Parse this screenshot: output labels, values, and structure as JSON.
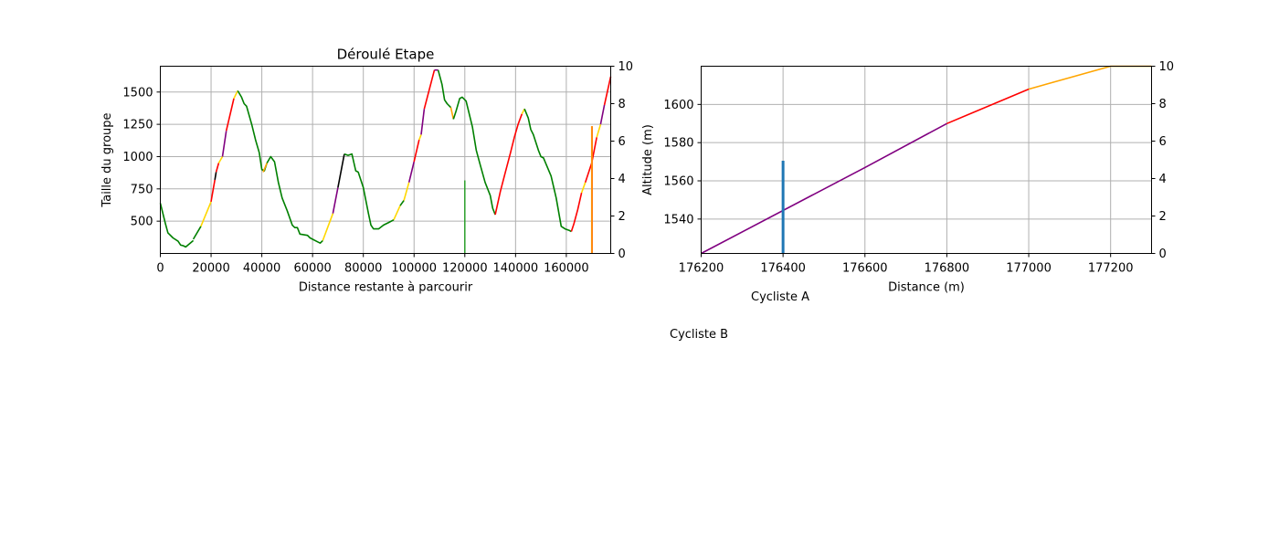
{
  "chart_data": [
    {
      "type": "line",
      "title": "Déroulé Etape",
      "xlabel": "Distance restante à parcourir",
      "ylabel": "Taille du groupe",
      "xlim": [
        0,
        177500
      ],
      "ylim": [
        250,
        1700
      ],
      "y2lim": [
        0,
        10
      ],
      "grid": true,
      "x_ticks": [
        0,
        20000,
        40000,
        60000,
        80000,
        100000,
        120000,
        140000,
        160000
      ],
      "y_ticks": [
        500,
        750,
        1000,
        1250,
        1500
      ],
      "y2_ticks": [
        0,
        2,
        4,
        6,
        8,
        10
      ],
      "colors": {
        "green": "#008000",
        "yellow": "#ffd700",
        "orange": "#ffa500",
        "red": "#ff0000",
        "purple": "#800080",
        "black": "#000000"
      },
      "series": [
        {
          "color": "#008000",
          "points": [
            [
              0,
              640
            ],
            [
              2000,
              480
            ],
            [
              3000,
              410
            ],
            [
              5000,
              370
            ],
            [
              7000,
              345
            ],
            [
              8000,
              315
            ],
            [
              9000,
              310
            ],
            [
              10000,
              300
            ],
            [
              13000,
              350
            ]
          ]
        },
        {
          "color": "#008000",
          "points": [
            [
              13000,
              360
            ],
            [
              16000,
              460
            ]
          ]
        },
        {
          "color": "#ffd700",
          "points": [
            [
              16000,
              460
            ],
            [
              20000,
              650
            ]
          ]
        },
        {
          "color": "#ff0000",
          "points": [
            [
              20000,
              650
            ],
            [
              21500,
              820
            ]
          ]
        },
        {
          "color": "#000000",
          "points": [
            [
              21500,
              820
            ],
            [
              22000,
              880
            ]
          ]
        },
        {
          "color": "#ff0000",
          "points": [
            [
              22000,
              880
            ],
            [
              23000,
              950
            ]
          ]
        },
        {
          "color": "#ffd700",
          "points": [
            [
              23000,
              950
            ],
            [
              24500,
              1000
            ]
          ]
        },
        {
          "color": "#800080",
          "points": [
            [
              24500,
              1000
            ],
            [
              26000,
              1200
            ]
          ]
        },
        {
          "color": "#ff0000",
          "points": [
            [
              26000,
              1200
            ],
            [
              29000,
              1450
            ]
          ]
        },
        {
          "color": "#ffd700",
          "points": [
            [
              29000,
              1450
            ],
            [
              30500,
              1510
            ]
          ]
        },
        {
          "color": "#008000",
          "points": [
            [
              30500,
              1510
            ],
            [
              32000,
              1460
            ],
            [
              33000,
              1410
            ],
            [
              34000,
              1390
            ],
            [
              36000,
              1250
            ],
            [
              37500,
              1130
            ],
            [
              39000,
              1030
            ],
            [
              40000,
              900
            ],
            [
              41000,
              890
            ],
            [
              42000,
              950
            ]
          ]
        },
        {
          "color": "#ffa500",
          "points": [
            [
              40500,
              880
            ],
            [
              42000,
              950
            ]
          ]
        },
        {
          "color": "#008000",
          "points": [
            [
              42000,
              950
            ],
            [
              43500,
              1000
            ],
            [
              45000,
              960
            ],
            [
              46500,
              800
            ],
            [
              48000,
              680
            ],
            [
              50000,
              580
            ],
            [
              52000,
              470
            ],
            [
              53000,
              450
            ],
            [
              54000,
              450
            ],
            [
              55000,
              400
            ],
            [
              58000,
              390
            ],
            [
              59000,
              370
            ],
            [
              62000,
              340
            ],
            [
              63000,
              330
            ],
            [
              64000,
              350
            ]
          ]
        },
        {
          "color": "#ffd700",
          "points": [
            [
              64000,
              350
            ],
            [
              68000,
              560
            ]
          ]
        },
        {
          "color": "#800080",
          "points": [
            [
              68000,
              560
            ],
            [
              70000,
              760
            ]
          ]
        },
        {
          "color": "#000000",
          "points": [
            [
              70000,
              760
            ],
            [
              72500,
              1020
            ]
          ]
        },
        {
          "color": "#008000",
          "points": [
            [
              72500,
              1020
            ],
            [
              74000,
              1010
            ],
            [
              75500,
              1020
            ],
            [
              77000,
              890
            ],
            [
              78000,
              880
            ],
            [
              80000,
              760
            ],
            [
              82000,
              560
            ],
            [
              83000,
              470
            ],
            [
              84000,
              440
            ],
            [
              86000,
              440
            ],
            [
              88000,
              470
            ],
            [
              90000,
              490
            ],
            [
              92000,
              510
            ]
          ]
        },
        {
          "color": "#ffd700",
          "points": [
            [
              92000,
              510
            ],
            [
              94500,
              620
            ]
          ]
        },
        {
          "color": "#008000",
          "points": [
            [
              94500,
              620
            ],
            [
              96000,
              660
            ]
          ]
        },
        {
          "color": "#ffd700",
          "points": [
            [
              96000,
              660
            ],
            [
              98000,
              800
            ]
          ]
        },
        {
          "color": "#800080",
          "points": [
            [
              98000,
              800
            ],
            [
              100000,
              960
            ]
          ]
        },
        {
          "color": "#ff0000",
          "points": [
            [
              100000,
              960
            ],
            [
              102000,
              1130
            ]
          ]
        },
        {
          "color": "#ffd700",
          "points": [
            [
              102000,
              1130
            ],
            [
              102800,
              1170
            ]
          ]
        },
        {
          "color": "#800080",
          "points": [
            [
              102800,
              1170
            ],
            [
              104000,
              1370
            ]
          ]
        },
        {
          "color": "#ff0000",
          "points": [
            [
              104000,
              1370
            ],
            [
              108000,
              1670
            ]
          ]
        },
        {
          "color": "#800080",
          "points": [
            [
              108000,
              1670
            ],
            [
              109500,
              1670
            ]
          ]
        },
        {
          "color": "#008000",
          "points": [
            [
              109500,
              1670
            ],
            [
              111000,
              1560
            ],
            [
              112000,
              1440
            ],
            [
              113000,
              1410
            ],
            [
              114500,
              1380
            ]
          ]
        },
        {
          "color": "#ffa500",
          "points": [
            [
              114500,
              1380
            ],
            [
              115500,
              1290
            ]
          ]
        },
        {
          "color": "#008000",
          "points": [
            [
              115500,
              1290
            ],
            [
              116500,
              1350
            ],
            [
              118000,
              1450
            ],
            [
              119000,
              1460
            ],
            [
              120500,
              1430
            ],
            [
              123000,
              1230
            ],
            [
              124500,
              1050
            ],
            [
              126000,
              940
            ],
            [
              128000,
              800
            ],
            [
              130000,
              700
            ],
            [
              131000,
              600
            ],
            [
              132000,
              550
            ]
          ]
        },
        {
          "color": "#ff0000",
          "points": [
            [
              132000,
              550
            ],
            [
              134000,
              730
            ],
            [
              136000,
              880
            ],
            [
              138000,
              1030
            ],
            [
              139500,
              1150
            ],
            [
              141000,
              1250
            ],
            [
              142500,
              1330
            ]
          ]
        },
        {
          "color": "#ffd700",
          "points": [
            [
              142500,
              1330
            ],
            [
              143500,
              1370
            ]
          ]
        },
        {
          "color": "#008000",
          "points": [
            [
              143500,
              1370
            ],
            [
              145000,
              1300
            ],
            [
              146000,
              1210
            ],
            [
              147000,
              1170
            ],
            [
              149000,
              1050
            ],
            [
              150000,
              1000
            ],
            [
              151000,
              990
            ],
            [
              154000,
              850
            ],
            [
              156000,
              680
            ],
            [
              158000,
              460
            ],
            [
              159500,
              440
            ],
            [
              161000,
              430
            ],
            [
              162000,
              420
            ]
          ]
        },
        {
          "color": "#ff0000",
          "points": [
            [
              162000,
              420
            ],
            [
              163000,
              480
            ],
            [
              164500,
              590
            ],
            [
              166000,
              720
            ]
          ]
        },
        {
          "color": "#ffd700",
          "points": [
            [
              166000,
              720
            ],
            [
              167500,
              800
            ]
          ]
        },
        {
          "color": "#ff0000",
          "points": [
            [
              167500,
              800
            ],
            [
              170000,
              950
            ],
            [
              172000,
              1150
            ]
          ]
        },
        {
          "color": "#ffd700",
          "points": [
            [
              172000,
              1150
            ],
            [
              173500,
              1250
            ]
          ]
        },
        {
          "color": "#800080",
          "points": [
            [
              173500,
              1250
            ],
            [
              175000,
              1400
            ]
          ]
        },
        {
          "color": "#ff0000",
          "points": [
            [
              175000,
              1400
            ],
            [
              177500,
              1620
            ]
          ]
        }
      ],
      "altitude_markers": [
        {
          "color": "#2ca02c",
          "x": 120000,
          "y2": 3.9
        },
        {
          "color": "#ffa500",
          "x": 170000,
          "y2": 6.8
        },
        {
          "color": "#ff7f0e",
          "x": 170200,
          "y2": 6.8
        }
      ]
    },
    {
      "type": "line",
      "title": "",
      "xlabel": "Distance (m)",
      "ylabel": "Altitude (m)",
      "xlim": [
        176200,
        177300
      ],
      "ylim": [
        1522,
        1620
      ],
      "y2lim": [
        0,
        10
      ],
      "grid": true,
      "x_ticks": [
        176200,
        176400,
        176600,
        176800,
        177000,
        177200
      ],
      "y_ticks": [
        1540,
        1560,
        1580,
        1600
      ],
      "y2_ticks": [
        0,
        2,
        4,
        6,
        8,
        10
      ],
      "series": [
        {
          "color": "#800080",
          "points": [
            [
              176200,
              1522
            ],
            [
              176600,
              1567
            ],
            [
              176800,
              1590
            ]
          ]
        },
        {
          "color": "#ff0000",
          "points": [
            [
              176800,
              1590
            ],
            [
              177000,
              1608
            ]
          ]
        },
        {
          "color": "#ffa500",
          "points": [
            [
              177000,
              1608
            ],
            [
              177200,
              1620
            ],
            [
              177300,
              1620
            ]
          ]
        }
      ],
      "markers": [
        {
          "color": "#1f77b4",
          "x": 176400,
          "y_from": 1522,
          "y_to": 1570.5
        }
      ]
    }
  ],
  "labels": {
    "cyclist_a": "Cycliste A",
    "cyclist_b": "Cycliste B"
  }
}
